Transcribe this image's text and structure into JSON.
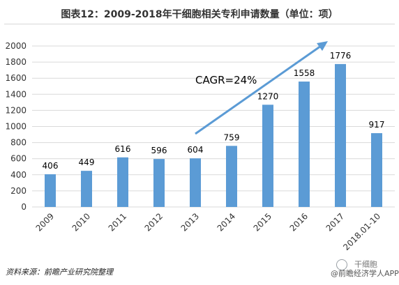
{
  "title": "图表12：2009-2018年干细胞相关专利申请数量（单位：项）",
  "source": "资料来源：前瞻产业研究院整理",
  "watermark": "@前瞻经济学人APP",
  "watermark_top": "干细胞",
  "colors": {
    "bar": "#5b9bd5",
    "arrow": "#5b9bd5",
    "grid": "#d9d9d9",
    "axis_text": "#333333"
  },
  "chart_data": {
    "type": "bar",
    "categories": [
      "2009",
      "2010",
      "2011",
      "2012",
      "2013",
      "2014",
      "2015",
      "2016",
      "2017",
      "2018.01-10"
    ],
    "values": [
      406,
      449,
      616,
      596,
      604,
      759,
      1270,
      1558,
      1776,
      917
    ],
    "data_labels": [
      "406",
      "449",
      "616",
      "596",
      "604",
      "759",
      "1270",
      "1558",
      "1776",
      "917"
    ],
    "ylim": [
      0,
      2000
    ],
    "yticks": [
      "0",
      "200",
      "400",
      "600",
      "800",
      "1000",
      "1200",
      "1400",
      "1600",
      "1800",
      "2000"
    ],
    "grid": true,
    "annotation": "CAGR=24%"
  }
}
